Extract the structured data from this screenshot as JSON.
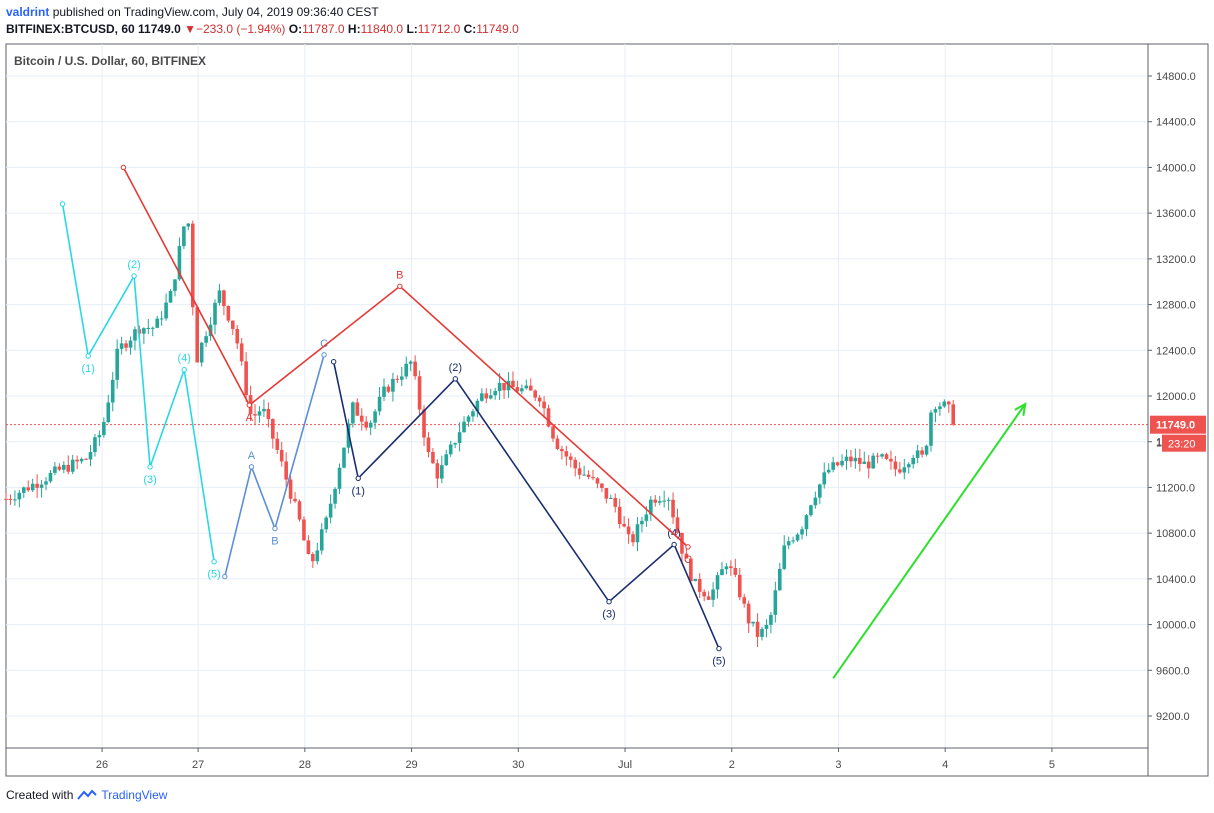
{
  "header": {
    "author": "valdrint",
    "published_text": "published on TradingView.com, July 04, 2019 09:36:40 CEST",
    "symbol": "BITFINEX:BTCUSD, 60",
    "last": "11749.0",
    "change": "−233.0 (−1.94%)",
    "o_label": "O:",
    "o_value": "11787.0",
    "h_label": "H:",
    "h_value": "11840.0",
    "l_label": "L:",
    "l_value": "11712.0",
    "c_label": "C:",
    "c_value": "11749.0"
  },
  "chart_title": "Bitcoin / U.S. Dollar, 60, BITFINEX",
  "price_tag": {
    "price": "11749.0",
    "countdown": "23:20",
    "partial_label": "1"
  },
  "footer": {
    "created_with": "Created with",
    "brand": "TradingView"
  },
  "colors": {
    "up": "#26a69a",
    "down": "#ef5350",
    "grid": "#e6eef6",
    "cyan_wave": "#2ad7e5",
    "blue_wave": "#5b8fd6",
    "navy_wave": "#1a2e6e",
    "red_wave": "#e53935",
    "green_arrow": "#2ee02e",
    "price_line": "#ef5350",
    "axis_text": "#4a4a4a"
  },
  "chart_data": {
    "type": "candlestick",
    "title": "Bitcoin / U.S. Dollar, 60, BITFINEX",
    "ylim": [
      8920,
      15080
    ],
    "y_ticks": [
      9200,
      9600,
      10000,
      10400,
      10800,
      11200,
      11600,
      12000,
      12400,
      12800,
      13200,
      13600,
      14000,
      14400,
      14800
    ],
    "x_ticks": [
      {
        "t": 0.9,
        "label": "26"
      },
      {
        "t": 1.8,
        "label": "27"
      },
      {
        "t": 2.8,
        "label": "28"
      },
      {
        "t": 3.8,
        "label": "29"
      },
      {
        "t": 4.8,
        "label": "30"
      },
      {
        "t": 5.8,
        "label": "Jul"
      },
      {
        "t": 6.8,
        "label": "2"
      },
      {
        "t": 7.8,
        "label": "3"
      },
      {
        "t": 8.8,
        "label": "4"
      },
      {
        "t": 9.8,
        "label": "5"
      }
    ],
    "x_range": [
      0,
      10.7
    ],
    "grid": true,
    "current_price": 11749,
    "price_path": [
      [
        0.0,
        11100
      ],
      [
        0.3,
        11250
      ],
      [
        0.5,
        11350
      ],
      [
        0.75,
        11450
      ],
      [
        0.9,
        11700
      ],
      [
        1.05,
        12400
      ],
      [
        1.25,
        12600
      ],
      [
        1.4,
        12600
      ],
      [
        1.55,
        12900
      ],
      [
        1.7,
        13650
      ],
      [
        1.78,
        12300
      ],
      [
        1.85,
        12500
      ],
      [
        2.0,
        12900
      ],
      [
        2.15,
        12550
      ],
      [
        2.3,
        11800
      ],
      [
        2.4,
        11900
      ],
      [
        2.55,
        11500
      ],
      [
        2.75,
        10900
      ],
      [
        2.85,
        10500
      ],
      [
        3.0,
        10900
      ],
      [
        3.15,
        11500
      ],
      [
        3.25,
        11900
      ],
      [
        3.4,
        11750
      ],
      [
        3.55,
        12050
      ],
      [
        3.8,
        12300
      ],
      [
        3.95,
        11500
      ],
      [
        4.05,
        11300
      ],
      [
        4.25,
        11700
      ],
      [
        4.45,
        12000
      ],
      [
        4.6,
        12100
      ],
      [
        4.85,
        12050
      ],
      [
        5.0,
        12000
      ],
      [
        5.15,
        11600
      ],
      [
        5.35,
        11350
      ],
      [
        5.45,
        11300
      ],
      [
        5.7,
        11050
      ],
      [
        5.85,
        10700
      ],
      [
        6.05,
        11100
      ],
      [
        6.2,
        11150
      ],
      [
        6.35,
        10600
      ],
      [
        6.45,
        10350
      ],
      [
        6.6,
        10250
      ],
      [
        6.75,
        10550
      ],
      [
        6.85,
        10350
      ],
      [
        6.95,
        10050
      ],
      [
        7.05,
        9900
      ],
      [
        7.15,
        10000
      ],
      [
        7.3,
        10700
      ],
      [
        7.45,
        10850
      ],
      [
        7.55,
        11100
      ],
      [
        7.7,
        11350
      ],
      [
        7.9,
        11450
      ],
      [
        8.05,
        11400
      ],
      [
        8.2,
        11450
      ],
      [
        8.35,
        11350
      ],
      [
        8.5,
        11500
      ],
      [
        8.6,
        11450
      ],
      [
        8.68,
        11950
      ],
      [
        8.82,
        11900
      ],
      [
        8.9,
        11750
      ]
    ],
    "waves": [
      {
        "color_key": "cyan_wave",
        "labels": [
          "(1)",
          "(2)",
          "(3)",
          "(4)",
          "(5)"
        ],
        "points": [
          [
            0.53,
            13680
          ],
          [
            0.77,
            12350
          ],
          [
            1.2,
            13050
          ],
          [
            1.35,
            11380
          ],
          [
            1.67,
            12230
          ],
          [
            1.95,
            10550
          ]
        ],
        "label_points": [
          1,
          2,
          3,
          4,
          5
        ],
        "label_pos": [
          "below",
          "above",
          "below",
          "above",
          "below"
        ]
      },
      {
        "color_key": "blue_wave",
        "labels": [
          "A",
          "B",
          "C"
        ],
        "points": [
          [
            2.05,
            10420
          ],
          [
            2.3,
            11380
          ],
          [
            2.52,
            10840
          ],
          [
            2.98,
            12360
          ]
        ],
        "label_points": [
          1,
          2,
          3
        ],
        "label_pos": [
          "above",
          "below",
          "above"
        ]
      },
      {
        "color_key": "navy_wave",
        "labels": [
          "(1)",
          "(2)",
          "(3)",
          "(4)",
          "(5)"
        ],
        "points": [
          [
            3.07,
            12300
          ],
          [
            3.3,
            11280
          ],
          [
            4.21,
            12150
          ],
          [
            5.65,
            10200
          ],
          [
            6.26,
            10700
          ],
          [
            6.68,
            9790
          ]
        ],
        "label_points": [
          1,
          2,
          3,
          4,
          5
        ],
        "label_pos": [
          "below",
          "above",
          "below",
          "above",
          "below"
        ]
      },
      {
        "color_key": "red_wave",
        "labels": [
          "A",
          "B",
          "C"
        ],
        "points": [
          [
            1.1,
            14000
          ],
          [
            2.28,
            11920
          ],
          [
            3.69,
            12960
          ],
          [
            6.39,
            10680
          ]
        ],
        "label_points": [
          1,
          2,
          3
        ],
        "label_pos": [
          "below",
          "above",
          "below"
        ]
      }
    ],
    "arrow": {
      "color_key": "green_arrow",
      "from": [
        7.75,
        9530
      ],
      "to": [
        9.55,
        11930
      ]
    }
  }
}
